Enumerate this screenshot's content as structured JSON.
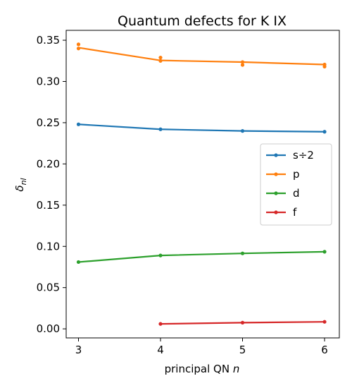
{
  "chart_data": {
    "type": "line",
    "title": "Quantum defects for K IX",
    "xlabel": "principal QN",
    "xlabel_var": "n",
    "ylabel_sym": "δ",
    "ylabel_sub": "nl",
    "xlim": [
      2.85,
      6.18
    ],
    "ylim": [
      -0.011,
      0.362
    ],
    "xticks": [
      3,
      4,
      5,
      6
    ],
    "yticks": [
      0.0,
      0.05,
      0.1,
      0.15,
      0.2,
      0.25,
      0.3,
      0.35
    ],
    "ytick_labels": [
      "0.00",
      "0.05",
      "0.10",
      "0.15",
      "0.20",
      "0.25",
      "0.30",
      "0.35"
    ],
    "grid": false,
    "legend_position": "center-right",
    "series": [
      {
        "name": "s÷2",
        "color": "#1f77b4",
        "line": [
          [
            3,
            0.248
          ],
          [
            4,
            0.242
          ],
          [
            5,
            0.24
          ],
          [
            6,
            0.239
          ]
        ],
        "markers": [
          [
            3,
            0.248
          ],
          [
            4,
            0.242
          ],
          [
            5,
            0.24
          ],
          [
            6,
            0.239
          ]
        ]
      },
      {
        "name": "p",
        "color": "#ff7f0e",
        "line": [
          [
            3,
            0.341
          ],
          [
            4,
            0.3255
          ],
          [
            5,
            0.3235
          ],
          [
            6,
            0.3205
          ]
        ],
        "markers": [
          [
            3,
            0.345
          ],
          [
            3,
            0.34
          ],
          [
            4,
            0.329
          ],
          [
            4,
            0.325
          ],
          [
            5,
            0.3235
          ],
          [
            5,
            0.32
          ],
          [
            6,
            0.3205
          ],
          [
            6,
            0.318
          ]
        ]
      },
      {
        "name": "d",
        "color": "#2ca02c",
        "line": [
          [
            3,
            0.081
          ],
          [
            4,
            0.089
          ],
          [
            5,
            0.0915
          ],
          [
            6,
            0.0935
          ]
        ],
        "markers": [
          [
            3,
            0.081
          ],
          [
            4,
            0.089
          ],
          [
            5,
            0.0915
          ],
          [
            6,
            0.0935
          ]
        ]
      },
      {
        "name": "f",
        "color": "#d62728",
        "line": [
          [
            4,
            0.006
          ],
          [
            5,
            0.0075
          ],
          [
            6,
            0.0085
          ]
        ],
        "markers": [
          [
            4,
            0.006
          ],
          [
            5,
            0.0075
          ],
          [
            6,
            0.0085
          ]
        ]
      }
    ]
  }
}
